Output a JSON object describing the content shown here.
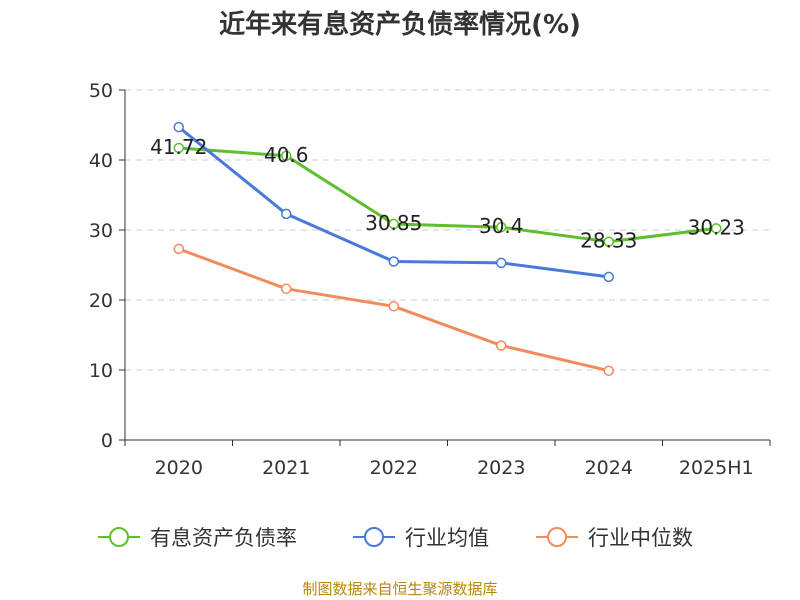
{
  "chart_data": {
    "type": "line",
    "title": "近年来有息资产负债率情况(%)",
    "ylabel": "(%)",
    "xlabel": "",
    "categories": [
      "2020",
      "2021",
      "2022",
      "2023",
      "2024",
      "2025H1"
    ],
    "ylim": [
      0,
      50
    ],
    "yticks": [
      0,
      10,
      20,
      30,
      40,
      50
    ],
    "grid": "horizontal-dashed",
    "legend_position": "bottom",
    "series": [
      {
        "name": "有息资产负债率",
        "color": "#5dbf2c",
        "values": [
          41.72,
          40.6,
          30.85,
          30.4,
          28.33,
          30.23
        ],
        "labels": [
          "41.72",
          "40.6",
          "30.85",
          "30.4",
          "28.33",
          "30.23"
        ]
      },
      {
        "name": "行业均值",
        "color": "#4a78dc",
        "values": [
          44.7,
          32.3,
          25.5,
          25.3,
          23.3,
          null
        ]
      },
      {
        "name": "行业中位数",
        "color": "#f28b5b",
        "values": [
          27.3,
          21.6,
          19.1,
          13.5,
          9.9,
          null
        ]
      }
    ]
  },
  "source": "制图数据来自恒生聚源数据库"
}
